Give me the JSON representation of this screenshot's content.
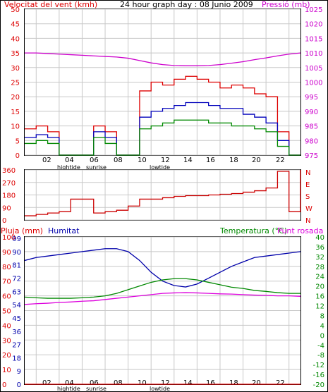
{
  "header": {
    "wind_title": "Velocitat del vent (kmh)",
    "graph_title": "24 hour graph day : 08 Junio 2009",
    "pressure_title": "Pressió (mb)"
  },
  "x_axis": {
    "labels": [
      "02",
      "04",
      "06",
      "08",
      "10",
      "12",
      "14",
      "16",
      "18",
      "20",
      "22"
    ],
    "hightide_label": "hightide",
    "sunrise_label": "sunrise",
    "lowtide_label": "lowtide"
  },
  "bottom_header": {
    "rain_title": "Pluja (mm)",
    "humidity_title": "Humitat",
    "temperature_title": "Temperatura (°C)",
    "dewpoint_title": "Punt rosada"
  },
  "colors": {
    "frame": "#000000",
    "grid": "#c8c8c8",
    "wind_red": "#dd0000",
    "wind_blue": "#0000bb",
    "wind_green": "#008800",
    "pressure": "#cc00cc",
    "direction": "#cc0000",
    "humidity": "#0000aa",
    "temperature": "#008800",
    "dewpoint": "#dd00dd",
    "rain": "#dd0000",
    "title_red": "#dd0000",
    "title_magenta": "#cc00cc",
    "title_blue": "#0000aa",
    "title_green": "#008800"
  },
  "chart_data": [
    {
      "type": "line",
      "title": "24 hour graph day : 08 Junio 2009",
      "x": [
        0,
        1,
        2,
        3,
        4,
        5,
        6,
        7,
        8,
        9,
        10,
        11,
        12,
        13,
        14,
        15,
        16,
        17,
        18,
        19,
        20,
        21,
        22,
        23,
        24
      ],
      "left_axis": {
        "label": "Velocitat del vent (kmh)",
        "ylim": [
          0,
          50
        ],
        "ticks": [
          "0",
          "5",
          "10",
          "15",
          "20",
          "25",
          "30",
          "35",
          "40",
          "45",
          "50"
        ]
      },
      "right_axis": {
        "label": "Pressió (mb)",
        "ylim": [
          975,
          1025
        ],
        "ticks": [
          "975",
          "980",
          "985",
          "990",
          "995",
          "1000",
          "1005",
          "1010",
          "1015",
          "1020",
          "1025"
        ]
      },
      "series": [
        {
          "axis": "left",
          "color": "#dd0000",
          "values": [
            9,
            10,
            8,
            0,
            0,
            0,
            10,
            8,
            0,
            0,
            22,
            25,
            24,
            26,
            27,
            26,
            25,
            23,
            24,
            23,
            21,
            20,
            8,
            0,
            0
          ]
        },
        {
          "axis": "left",
          "color": "#0000bb",
          "values": [
            6,
            7,
            6,
            0,
            0,
            0,
            8,
            6,
            0,
            0,
            13,
            15,
            16,
            17,
            18,
            18,
            17,
            16,
            16,
            14,
            13,
            11,
            5,
            0,
            0
          ]
        },
        {
          "axis": "left",
          "color": "#008800",
          "values": [
            4,
            5,
            4,
            0,
            0,
            0,
            6,
            4,
            0,
            0,
            9,
            10,
            11,
            12,
            12,
            12,
            11,
            11,
            10,
            10,
            9,
            8,
            3,
            0,
            0
          ]
        },
        {
          "axis": "right",
          "color": "#cc00cc",
          "values": [
            1010,
            1010,
            1009.8,
            1009.6,
            1009.4,
            1009.2,
            1009,
            1008.8,
            1008.6,
            1008.2,
            1007.4,
            1006.6,
            1006,
            1005.7,
            1005.6,
            1005.6,
            1005.7,
            1006,
            1006.5,
            1007,
            1007.7,
            1008.3,
            1009,
            1009.6,
            1010
          ]
        }
      ]
    },
    {
      "type": "line",
      "x": [
        0,
        1,
        2,
        3,
        4,
        5,
        6,
        7,
        8,
        9,
        10,
        11,
        12,
        13,
        14,
        15,
        16,
        17,
        18,
        19,
        20,
        21,
        22,
        23,
        24
      ],
      "left_axis": {
        "ylim": [
          0,
          360
        ],
        "ticks": [
          "0",
          "90",
          "180",
          "270",
          "360"
        ]
      },
      "right_axis": {
        "ticks": [
          "N",
          "E",
          "S",
          "W",
          "N"
        ]
      },
      "series": [
        {
          "color": "#cc0000",
          "values": [
            30,
            40,
            50,
            60,
            150,
            150,
            50,
            60,
            70,
            100,
            150,
            150,
            160,
            170,
            175,
            175,
            180,
            185,
            190,
            200,
            210,
            230,
            350,
            60,
            360
          ]
        }
      ]
    },
    {
      "type": "line",
      "x": [
        0,
        1,
        2,
        3,
        4,
        5,
        6,
        7,
        8,
        9,
        10,
        11,
        12,
        13,
        14,
        15,
        16,
        17,
        18,
        19,
        20,
        21,
        22,
        23,
        24
      ],
      "left_axis": {
        "label": "Pluja (mm)",
        "ylim": [
          0,
          100
        ],
        "ticks": [
          "0",
          "10",
          "20",
          "30",
          "40",
          "50",
          "60",
          "70",
          "80",
          "90",
          "100"
        ]
      },
      "humidity_axis": {
        "label": "Humitat",
        "ticks": [
          "0",
          "9",
          "18",
          "27",
          "36",
          "45",
          "54",
          "63",
          "72",
          "81",
          "90",
          "99"
        ]
      },
      "right_axis": {
        "label": "Temperatura (°C)",
        "ylim": [
          -20,
          40
        ],
        "ticks": [
          "-20",
          "-16",
          "-12",
          "-8",
          "-4",
          "0",
          "4",
          "8",
          "12",
          "16",
          "20",
          "24",
          "28",
          "32",
          "36",
          "40"
        ]
      },
      "series": [
        {
          "name": "Humitat",
          "axis": "humidity",
          "color": "#0000aa",
          "values": [
            84,
            86,
            87,
            88,
            89,
            90,
            91,
            92,
            92,
            90,
            84,
            76,
            70,
            67,
            66,
            68,
            72,
            76,
            80,
            83,
            86,
            87,
            88,
            89,
            90
          ]
        },
        {
          "name": "Temperatura (°C)",
          "axis": "right",
          "color": "#008800",
          "values": [
            15.5,
            15.2,
            15,
            15,
            15,
            15.2,
            15.5,
            16,
            17,
            18.5,
            20,
            21.5,
            22.5,
            23,
            23,
            22.5,
            21.5,
            20.5,
            19.5,
            19,
            18.2,
            17.8,
            17.3,
            17,
            17
          ]
        },
        {
          "name": "Punt rosada",
          "axis": "right",
          "color": "#dd00dd",
          "values": [
            12.5,
            12.8,
            13,
            13.3,
            13.5,
            13.8,
            14,
            14.5,
            15,
            15.5,
            16,
            16.5,
            17,
            17.2,
            17.3,
            17.2,
            17,
            16.8,
            16.7,
            16.5,
            16.3,
            16.2,
            16,
            16,
            15.8
          ]
        },
        {
          "name": "Pluja (mm)",
          "axis": "left",
          "color": "#dd0000",
          "values": [
            0,
            0,
            0,
            0,
            0,
            0,
            0,
            0,
            0,
            0,
            0,
            0,
            0,
            0,
            0,
            0,
            0,
            0,
            0,
            0,
            0,
            0,
            0,
            0,
            0
          ]
        }
      ]
    }
  ]
}
